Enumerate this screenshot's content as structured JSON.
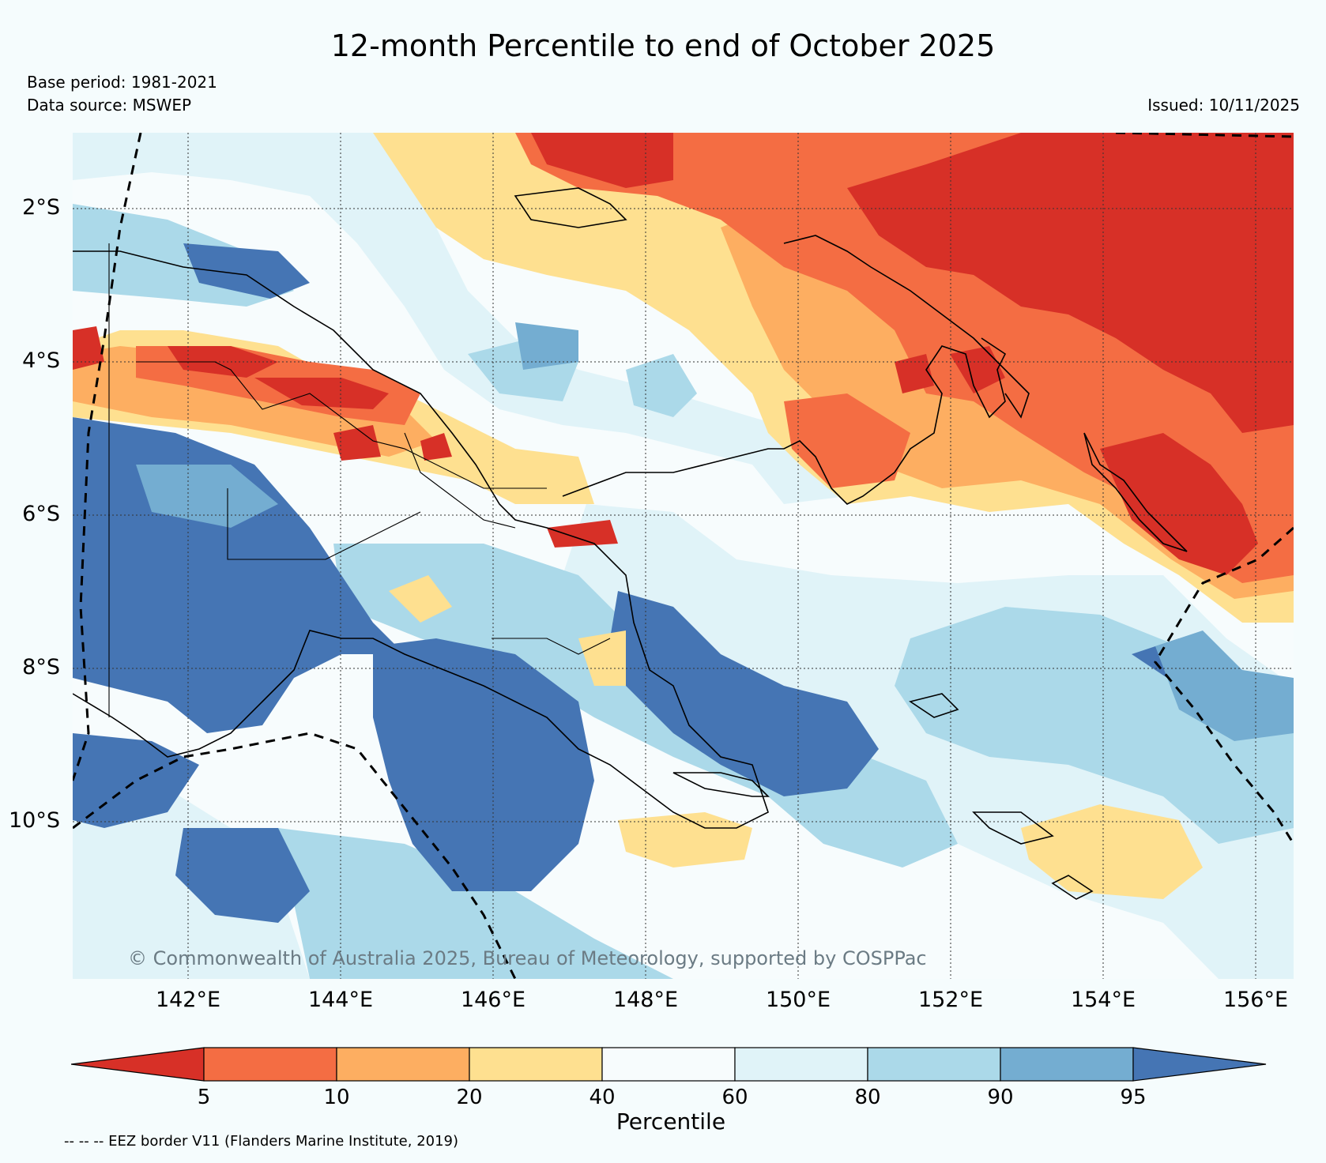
{
  "title": "12-month Percentile to end of October 2025",
  "meta": {
    "base_period": "Base period: 1981-2021",
    "data_source": "Data source: MSWEP",
    "issued": "Issued: 10/11/2025"
  },
  "map": {
    "lat_ticks": [
      "2°S",
      "4°S",
      "6°S",
      "8°S",
      "10°S"
    ],
    "lon_ticks": [
      "142°E",
      "144°E",
      "146°E",
      "148°E",
      "150°E",
      "152°E",
      "154°E",
      "156°E"
    ],
    "copyright": "© Commonwealth of Australia 2025, Bureau of Meteorology, supported by COSPPac"
  },
  "colorbar": {
    "title": "Percentile",
    "boundaries": [
      "5",
      "10",
      "20",
      "40",
      "60",
      "80",
      "90",
      "95"
    ],
    "colors": [
      "#d73027",
      "#f46d43",
      "#fdae61",
      "#fee090",
      "#f7fcfd",
      "#e0f3f8",
      "#abd9e9",
      "#74add1",
      "#4575b4"
    ]
  },
  "footnote": "-- -- -- EEZ border V11 (Flanders Marine Institute, 2019)"
}
